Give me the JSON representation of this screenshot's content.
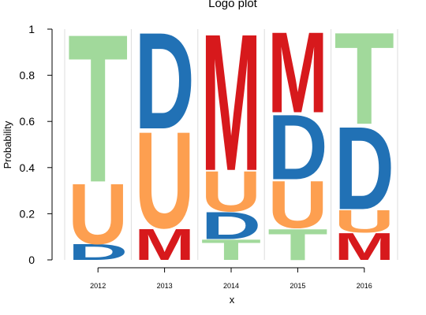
{
  "chart_data": {
    "type": "logo",
    "title": "Logo plot",
    "xlabel": "x",
    "ylabel": "Probability",
    "ylim": [
      0,
      1
    ],
    "yticks": [
      "0",
      "0.2",
      "0.4",
      "0.6",
      "0.8",
      "1"
    ],
    "ytick_values": [
      0,
      0.2,
      0.4,
      0.6,
      0.8,
      1
    ],
    "categories": [
      "2012",
      "2013",
      "2014",
      "2015",
      "2016"
    ],
    "colors": {
      "T": "#a1d99b",
      "D": "#2171b5",
      "U": "#fd9f50",
      "M": "#d7191c"
    },
    "stacks": [
      {
        "x": "2012",
        "letters": [
          {
            "letter": "D",
            "value": 0.07
          },
          {
            "letter": "U",
            "value": 0.27
          },
          {
            "letter": "T",
            "value": 0.66
          }
        ]
      },
      {
        "x": "2013",
        "letters": [
          {
            "letter": "M",
            "value": 0.14
          },
          {
            "letter": "U",
            "value": 0.43
          },
          {
            "letter": "D",
            "value": 0.43
          }
        ]
      },
      {
        "x": "2014",
        "letters": [
          {
            "letter": "T",
            "value": 0.09
          },
          {
            "letter": "D",
            "value": 0.12
          },
          {
            "letter": "U",
            "value": 0.18
          },
          {
            "letter": "M",
            "value": 0.61
          }
        ]
      },
      {
        "x": "2015",
        "letters": [
          {
            "letter": "T",
            "value": 0.14
          },
          {
            "letter": "U",
            "value": 0.21
          },
          {
            "letter": "D",
            "value": 0.29
          },
          {
            "letter": "M",
            "value": 0.36
          }
        ]
      },
      {
        "x": "2016",
        "letters": [
          {
            "letter": "M",
            "value": 0.12
          },
          {
            "letter": "U",
            "value": 0.1
          },
          {
            "letter": "D",
            "value": 0.37
          },
          {
            "letter": "T",
            "value": 0.41
          }
        ]
      }
    ]
  }
}
